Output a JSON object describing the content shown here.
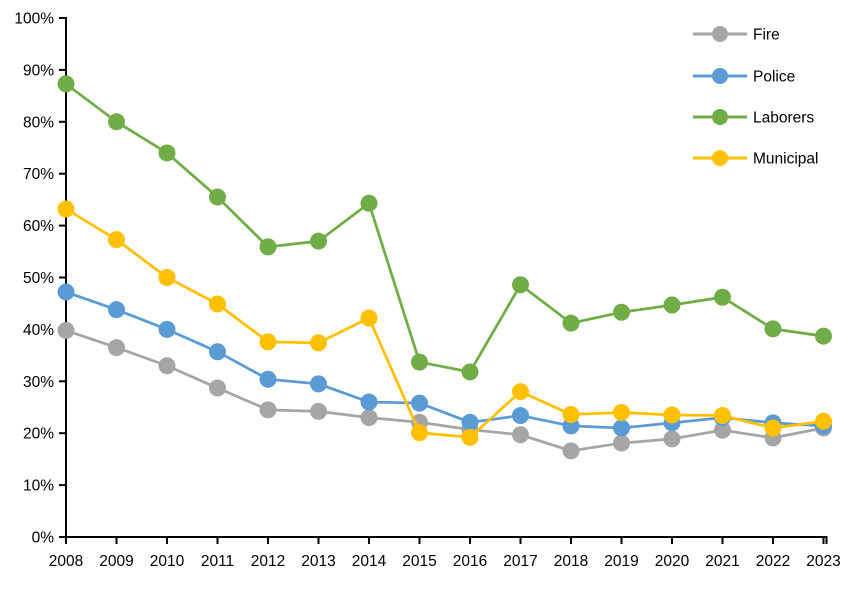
{
  "chart_data": {
    "type": "line",
    "title": "",
    "xlabel": "",
    "ylabel": "",
    "categories": [
      "2008",
      "2009",
      "2010",
      "2011",
      "2012",
      "2013",
      "2014",
      "2015",
      "2016",
      "2017",
      "2018",
      "2019",
      "2020",
      "2021",
      "2022",
      "2023"
    ],
    "series": [
      {
        "name": "Fire",
        "color": "#A5A5A5",
        "values": [
          39.8,
          36.5,
          33.0,
          28.7,
          24.5,
          24.2,
          23.0,
          22.1,
          20.7,
          19.7,
          16.6,
          18.1,
          18.9,
          20.6,
          19.1,
          21.0
        ]
      },
      {
        "name": "Police",
        "color": "#5B9BD5",
        "values": [
          47.2,
          43.8,
          40.0,
          35.7,
          30.4,
          29.5,
          26.0,
          25.8,
          22.1,
          23.4,
          21.4,
          21.0,
          22.0,
          23.0,
          22.0,
          21.4
        ]
      },
      {
        "name": "Laborers",
        "color": "#70AD47",
        "values": [
          87.3,
          80.0,
          74.0,
          65.5,
          55.9,
          57.0,
          64.3,
          33.7,
          31.8,
          48.6,
          41.2,
          43.3,
          44.7,
          46.2,
          40.1,
          38.7
        ]
      },
      {
        "name": "Municipal",
        "color": "#FFC000",
        "values": [
          63.2,
          57.3,
          50.0,
          44.9,
          37.6,
          37.4,
          42.2,
          20.1,
          19.2,
          28.0,
          23.6,
          24.0,
          23.5,
          23.4,
          21.0,
          22.3
        ]
      }
    ],
    "y_axis": {
      "min": 0,
      "max": 100,
      "tick_step": 10,
      "tick_labels": [
        "0%",
        "10%",
        "20%",
        "30%",
        "40%",
        "50%",
        "60%",
        "70%",
        "80%",
        "90%",
        "100%"
      ]
    },
    "legend": {
      "position": "top-right",
      "items": [
        "Fire",
        "Police",
        "Laborers",
        "Municipal"
      ]
    },
    "grid": false,
    "axis_color": "#000000",
    "background_color": "#FFFFFF"
  }
}
